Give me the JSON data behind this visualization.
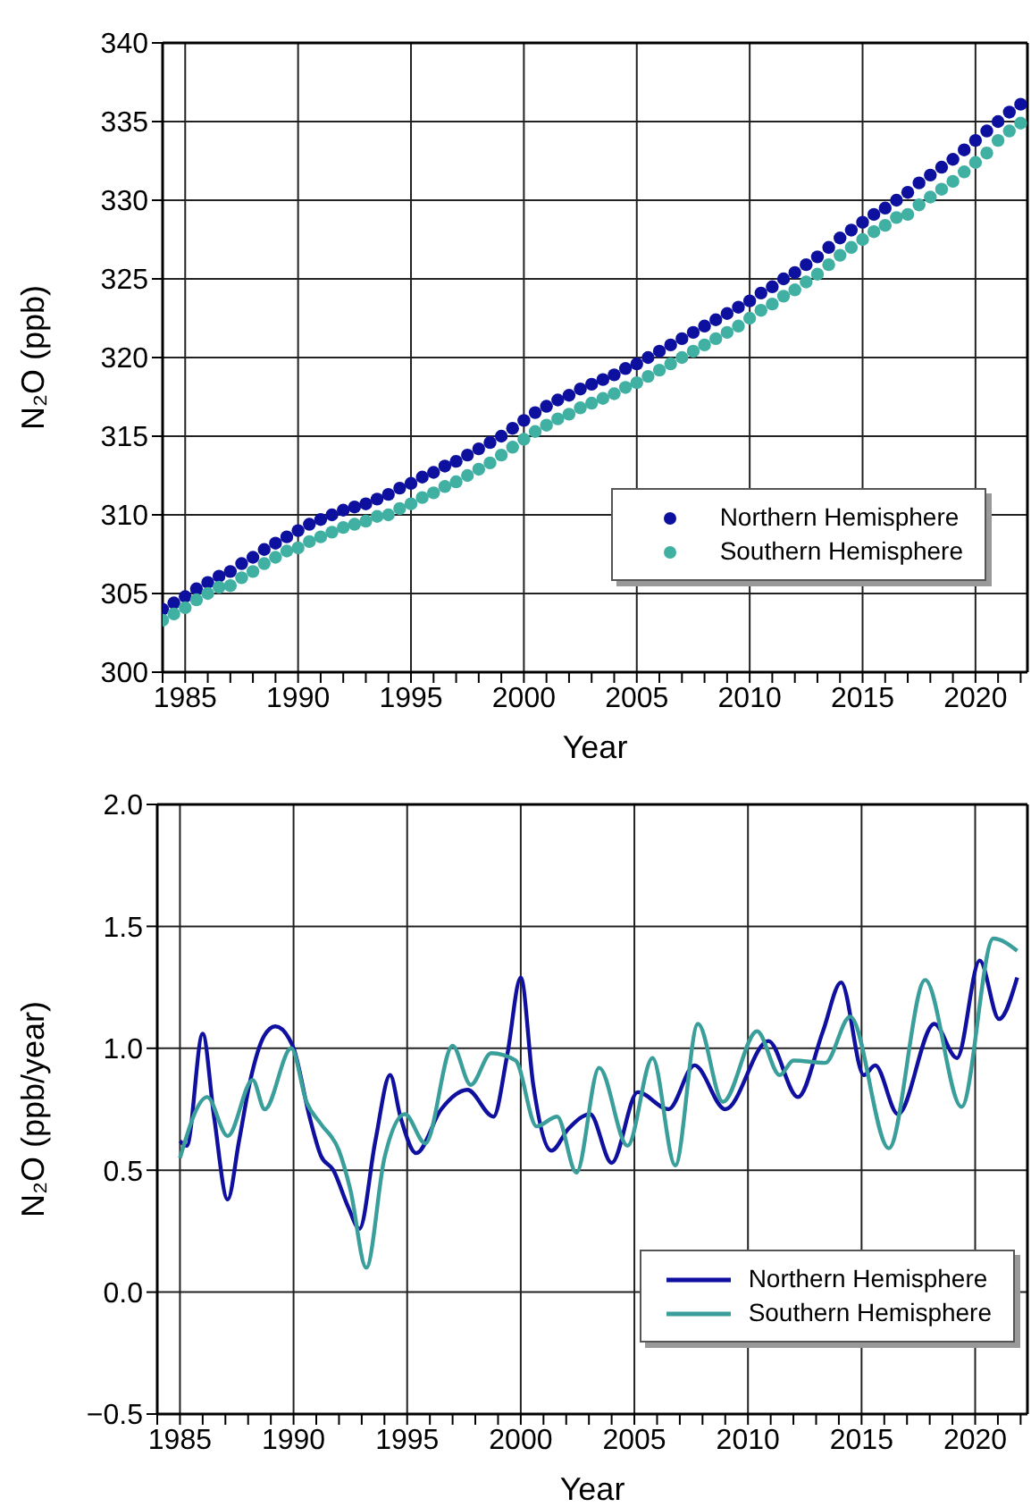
{
  "chart_data": [
    {
      "type": "scatter",
      "marker": "circle",
      "xlabel": "Year",
      "ylabel": "N₂O (ppb)",
      "grid": true,
      "legend": "bottom right",
      "xlim": [
        1984,
        2022.3
      ],
      "ylim": [
        300,
        340
      ],
      "xticks": [
        {
          "value": 1984,
          "label": null
        },
        1985,
        {
          "value": 1986,
          "label": null
        },
        {
          "value": 1987,
          "label": null
        },
        {
          "value": 1988,
          "label": null
        },
        {
          "value": 1989,
          "label": null
        },
        1990,
        {
          "value": 1991,
          "label": null
        },
        {
          "value": 1992,
          "label": null
        },
        {
          "value": 1993,
          "label": null
        },
        {
          "value": 1994,
          "label": null
        },
        1995,
        {
          "value": 1996,
          "label": null
        },
        {
          "value": 1997,
          "label": null
        },
        {
          "value": 1998,
          "label": null
        },
        {
          "value": 1999,
          "label": null
        },
        2000,
        {
          "value": 2001,
          "label": null
        },
        {
          "value": 2002,
          "label": null
        },
        {
          "value": 2003,
          "label": null
        },
        {
          "value": 2004,
          "label": null
        },
        2005,
        {
          "value": 2006,
          "label": null
        },
        {
          "value": 2007,
          "label": null
        },
        {
          "value": 2008,
          "label": null
        },
        {
          "value": 2009,
          "label": null
        },
        2010,
        {
          "value": 2011,
          "label": null
        },
        {
          "value": 2012,
          "label": null
        },
        {
          "value": 2013,
          "label": null
        },
        {
          "value": 2014,
          "label": null
        },
        2015,
        {
          "value": 2016,
          "label": null
        },
        {
          "value": 2017,
          "label": null
        },
        {
          "value": 2018,
          "label": null
        },
        {
          "value": 2019,
          "label": null
        },
        2020,
        {
          "value": 2021,
          "label": null
        },
        {
          "value": 2022,
          "label": null
        }
      ],
      "yticks": [
        300,
        305,
        310,
        315,
        320,
        325,
        330,
        335,
        340
      ],
      "x": [
        1984,
        1984.5,
        1985,
        1985.5,
        1986,
        1986.5,
        1987,
        1987.5,
        1988,
        1988.5,
        1989,
        1989.5,
        1990,
        1990.5,
        1991,
        1991.5,
        1992,
        1992.5,
        1993,
        1993.5,
        1994,
        1994.5,
        1995,
        1995.5,
        1996,
        1996.5,
        1997,
        1997.5,
        1998,
        1998.5,
        1999,
        1999.5,
        2000,
        2000.5,
        2001,
        2001.5,
        2002,
        2002.5,
        2003,
        2003.5,
        2004,
        2004.5,
        2005,
        2005.5,
        2006,
        2006.5,
        2007,
        2007.5,
        2008,
        2008.5,
        2009,
        2009.5,
        2010,
        2010.5,
        2011,
        2011.5,
        2012,
        2012.5,
        2013,
        2013.5,
        2014,
        2014.5,
        2015,
        2015.5,
        2016,
        2016.5,
        2017,
        2017.5,
        2018,
        2018.5,
        2019,
        2019.5,
        2020,
        2020.5,
        2021,
        2021.5,
        2022
      ],
      "series": [
        {
          "name": "Northern Hemisphere",
          "color": "#0d109e",
          "values": [
            304.0,
            304.4,
            304.8,
            305.3,
            305.7,
            306.1,
            306.4,
            306.9,
            307.3,
            307.8,
            308.2,
            308.6,
            309.0,
            309.4,
            309.7,
            310.0,
            310.3,
            310.5,
            310.7,
            311.0,
            311.3,
            311.7,
            312.0,
            312.4,
            312.7,
            313.1,
            313.4,
            313.8,
            314.2,
            314.6,
            315.0,
            315.5,
            316.0,
            316.5,
            316.9,
            317.3,
            317.6,
            318.0,
            318.3,
            318.6,
            318.9,
            319.3,
            319.6,
            320.0,
            320.4,
            320.8,
            321.2,
            321.6,
            322.0,
            322.4,
            322.8,
            323.2,
            323.6,
            324.1,
            324.5,
            325.0,
            325.4,
            325.9,
            326.4,
            327.0,
            327.6,
            328.1,
            328.6,
            329.1,
            329.5,
            330.0,
            330.5,
            331.1,
            331.6,
            332.1,
            332.6,
            333.2,
            333.8,
            334.4,
            335.0,
            335.6,
            336.1
          ]
        },
        {
          "name": "Southern Hemisphere",
          "color": "#3fb0a2",
          "values": [
            303.3,
            303.7,
            304.1,
            304.6,
            305.0,
            305.4,
            305.5,
            306.0,
            306.4,
            306.9,
            307.3,
            307.7,
            307.9,
            308.3,
            308.6,
            308.9,
            309.2,
            309.4,
            309.6,
            309.9,
            310.0,
            310.4,
            310.7,
            311.1,
            311.4,
            311.8,
            312.1,
            312.5,
            312.9,
            313.3,
            313.8,
            314.3,
            314.8,
            315.3,
            315.7,
            316.1,
            316.4,
            316.8,
            317.1,
            317.4,
            317.7,
            318.1,
            318.4,
            318.8,
            319.2,
            319.6,
            320.0,
            320.4,
            320.8,
            321.2,
            321.6,
            322.0,
            322.5,
            323.0,
            323.4,
            323.9,
            324.3,
            324.8,
            325.3,
            325.9,
            326.5,
            327.0,
            327.5,
            328.0,
            328.4,
            328.9,
            329.1,
            329.7,
            330.2,
            330.7,
            331.2,
            331.8,
            332.4,
            333.0,
            333.8,
            334.4,
            334.9
          ]
        }
      ]
    },
    {
      "type": "line",
      "xlabel": "Year",
      "ylabel": "N₂O (ppb/year)",
      "grid": true,
      "legend": "bottom right",
      "xlim": [
        1984,
        2022.3
      ],
      "ylim": [
        -0.5,
        2.0
      ],
      "xticks": [
        {
          "value": 1984,
          "label": null
        },
        1985,
        {
          "value": 1986,
          "label": null
        },
        {
          "value": 1987,
          "label": null
        },
        {
          "value": 1988,
          "label": null
        },
        {
          "value": 1989,
          "label": null
        },
        1990,
        {
          "value": 1991,
          "label": null
        },
        {
          "value": 1992,
          "label": null
        },
        {
          "value": 1993,
          "label": null
        },
        {
          "value": 1994,
          "label": null
        },
        1995,
        {
          "value": 1996,
          "label": null
        },
        {
          "value": 1997,
          "label": null
        },
        {
          "value": 1998,
          "label": null
        },
        {
          "value": 1999,
          "label": null
        },
        2000,
        {
          "value": 2001,
          "label": null
        },
        {
          "value": 2002,
          "label": null
        },
        {
          "value": 2003,
          "label": null
        },
        {
          "value": 2004,
          "label": null
        },
        2005,
        {
          "value": 2006,
          "label": null
        },
        {
          "value": 2007,
          "label": null
        },
        {
          "value": 2008,
          "label": null
        },
        {
          "value": 2009,
          "label": null
        },
        2010,
        {
          "value": 2011,
          "label": null
        },
        {
          "value": 2012,
          "label": null
        },
        {
          "value": 2013,
          "label": null
        },
        {
          "value": 2014,
          "label": null
        },
        2015,
        {
          "value": 2016,
          "label": null
        },
        {
          "value": 2017,
          "label": null
        },
        {
          "value": 2018,
          "label": null
        },
        {
          "value": 2019,
          "label": null
        },
        2020,
        {
          "value": 2021,
          "label": null
        },
        {
          "value": 2022,
          "label": null
        }
      ],
      "yticks": [
        {
          "value": -0.5,
          "label": "−0.5"
        },
        {
          "value": 0,
          "label": "0.0"
        },
        {
          "value": 0.5,
          "label": "0.5"
        },
        {
          "value": 1,
          "label": "1.0"
        },
        {
          "value": 1.5,
          "label": "1.5"
        },
        {
          "value": 2,
          "label": "2.0"
        }
      ],
      "series": [
        {
          "name": "Northern Hemisphere",
          "color": "#1010a0",
          "x": [
            1985.0,
            1985.3,
            1986.0,
            1986.5,
            1987.1,
            1987.6,
            1988.1,
            1988.7,
            1989.2,
            1989.8,
            1990.0,
            1990.7,
            1991.2,
            1991.75,
            1992.4,
            1992.9,
            1993.6,
            1994.25,
            1994.7,
            1995.4,
            1996.5,
            1997.65,
            1998.8,
            1999.4,
            2000.0,
            2000.55,
            2001.35,
            2002.1,
            2003.05,
            2004.0,
            2005.15,
            2006.5,
            2007.65,
            2009.0,
            2010.9,
            2012.2,
            2013.3,
            2014.1,
            2015.1,
            2015.6,
            2016.6,
            2018.2,
            2019.2,
            2020.2,
            2021.05,
            2021.85
          ],
          "values": [
            0.62,
            0.6,
            1.06,
            0.72,
            0.38,
            0.62,
            0.87,
            1.05,
            1.09,
            1.04,
            1.0,
            0.72,
            0.56,
            0.5,
            0.35,
            0.26,
            0.62,
            0.89,
            0.72,
            0.57,
            0.75,
            0.83,
            0.72,
            0.97,
            1.29,
            0.85,
            0.58,
            0.67,
            0.73,
            0.53,
            0.82,
            0.75,
            0.93,
            0.75,
            1.03,
            0.8,
            1.07,
            1.27,
            0.89,
            0.93,
            0.73,
            1.1,
            0.96,
            1.36,
            1.12,
            1.29
          ]
        },
        {
          "name": "Southern Hemisphere",
          "color": "#3a9e9a",
          "x": [
            1985.0,
            1986.2,
            1987.1,
            1988.2,
            1988.73,
            1989.9,
            1990.57,
            1991.2,
            1992.0,
            1992.5,
            1993.2,
            1994.0,
            1994.9,
            1995.8,
            1997.0,
            1997.8,
            1998.7,
            1999.77,
            2000.7,
            2001.6,
            2002.45,
            2003.45,
            2004.7,
            2005.8,
            2006.8,
            2007.8,
            2008.9,
            2010.4,
            2011.4,
            2012.0,
            2013.4,
            2014.5,
            2016.2,
            2017.8,
            2019.4,
            2020.8,
            2021.85
          ],
          "values": [
            0.55,
            0.8,
            0.64,
            0.87,
            0.75,
            1.0,
            0.78,
            0.69,
            0.58,
            0.42,
            0.1,
            0.55,
            0.73,
            0.61,
            1.01,
            0.85,
            0.98,
            0.95,
            0.68,
            0.72,
            0.49,
            0.92,
            0.6,
            0.96,
            0.52,
            1.1,
            0.78,
            1.07,
            0.89,
            0.95,
            0.94,
            1.13,
            0.59,
            1.28,
            0.76,
            1.45,
            1.4
          ]
        }
      ]
    }
  ]
}
